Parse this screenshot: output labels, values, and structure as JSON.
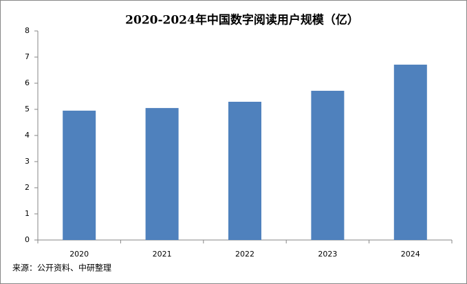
{
  "chart_data": {
    "type": "bar",
    "title": "2020-2024年中国数字阅读用户规模（亿）",
    "categories": [
      "2020",
      "2021",
      "2022",
      "2023",
      "2024"
    ],
    "values": [
      4.95,
      5.05,
      5.29,
      5.71,
      6.71
    ],
    "color": "#4f81bd",
    "ylim": [
      0,
      8
    ],
    "yticks": [
      0,
      1,
      2,
      3,
      4,
      5,
      6,
      7,
      8
    ],
    "grid": false,
    "source": "来源：公开资料、中研整理"
  }
}
